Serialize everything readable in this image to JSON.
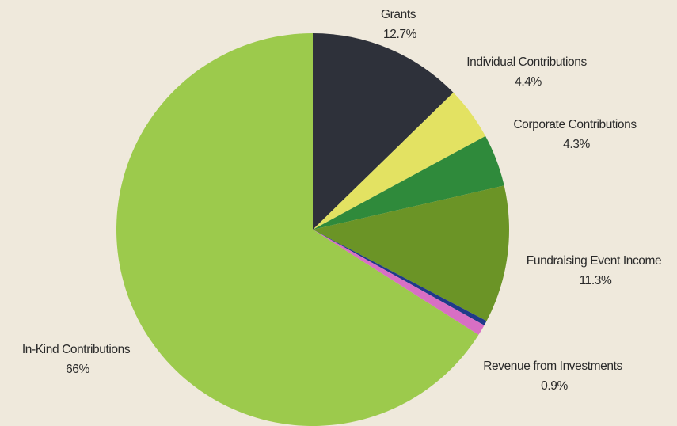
{
  "chart_data": {
    "type": "pie",
    "start_angle_deg": 0,
    "direction": "clockwise",
    "slices": [
      {
        "label": "Grants",
        "value_label": "12.7%",
        "value": 12.7,
        "color": "#2e313a"
      },
      {
        "label": "Individual Contributions",
        "value_label": "4.4%",
        "value": 4.4,
        "color": "#e3e262"
      },
      {
        "label": "Corporate Contributions",
        "value_label": "4.3%",
        "value": 4.3,
        "color": "#2f8a3b"
      },
      {
        "label": "Fundraising Event Income",
        "value_label": "11.3%",
        "value": 11.3,
        "color": "#6b9426"
      },
      {
        "label": "",
        "value_label": "",
        "value": 0.4,
        "color": "#1f3a8a"
      },
      {
        "label": "Revenue from Investments",
        "value_label": "0.9%",
        "value": 0.9,
        "color": "#d86fc4"
      },
      {
        "label": "In-Kind Contributions",
        "value_label": "66%",
        "value": 66,
        "color": "#9cca4c"
      }
    ]
  }
}
